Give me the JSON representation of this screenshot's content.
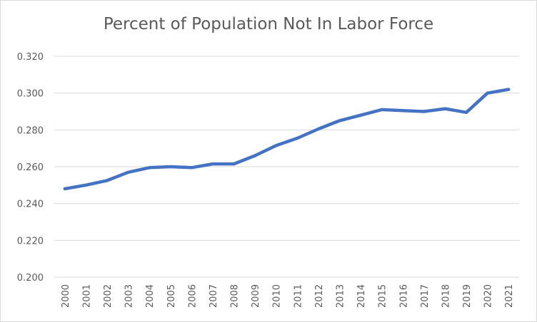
{
  "chart_data": {
    "type": "line",
    "title": "Percent of Population Not In Labor Force",
    "xlabel": "",
    "ylabel": "",
    "categories": [
      "2000",
      "2001",
      "2002",
      "2003",
      "2004",
      "2005",
      "2006",
      "2007",
      "2008",
      "2009",
      "2010",
      "2011",
      "2012",
      "2013",
      "2014",
      "2015",
      "2016",
      "2017",
      "2018",
      "2019",
      "2020",
      "2021"
    ],
    "series": [
      {
        "values": [
          0.248,
          0.25,
          0.2525,
          0.257,
          0.2595,
          0.26,
          0.2595,
          0.2615,
          0.2615,
          0.266,
          0.2715,
          0.2755,
          0.2805,
          0.285,
          0.288,
          0.291,
          0.2905,
          0.29,
          0.2915,
          0.2895,
          0.3,
          0.302
        ]
      }
    ],
    "ylim": [
      0.2,
      0.32
    ],
    "yticks": [
      "0.200",
      "0.220",
      "0.240",
      "0.260",
      "0.280",
      "0.300",
      "0.320"
    ],
    "ytick_values": [
      0.2,
      0.22,
      0.24,
      0.26,
      0.28,
      0.3,
      0.32
    ],
    "grid": true,
    "legend": "none",
    "line_color": "#4472c4",
    "grid_color": "#d9d9d9"
  }
}
